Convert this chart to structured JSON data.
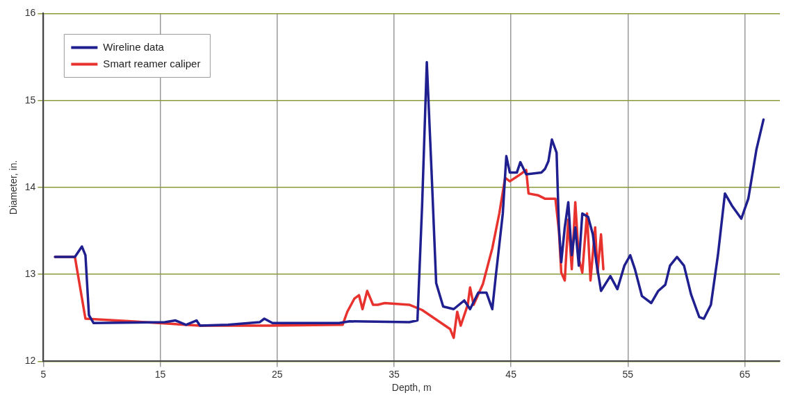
{
  "chart_data": {
    "type": "line",
    "xlabel": "Depth, m",
    "ylabel": "Diameter, in.",
    "xlim": [
      5,
      68
    ],
    "xticks": [
      5,
      15,
      25,
      35,
      45,
      55,
      65
    ],
    "ylim": [
      12,
      16
    ],
    "yticks": [
      12,
      13,
      14,
      15,
      16
    ],
    "grid": true,
    "legend": "top left",
    "marker": "none",
    "line_style": "solid",
    "series": [
      {
        "name": "Wireline data",
        "color": "#1f1f8f",
        "x": [
          6.0,
          7.7,
          8.3,
          8.6,
          8.9,
          9.3,
          15.4,
          16.3,
          17.2,
          18.1,
          18.4,
          20.8,
          23.5,
          23.9,
          24.6,
          30.3,
          31.2,
          36.3,
          37.0,
          37.4,
          37.8,
          38.2,
          38.6,
          39.2,
          40.1,
          41.0,
          41.5,
          42.2,
          42.9,
          43.4,
          43.7,
          44.3,
          44.6,
          44.9,
          45.5,
          45.8,
          46.3,
          47.6,
          47.9,
          48.2,
          48.5,
          48.9,
          49.1,
          49.3,
          49.6,
          49.9,
          50.2,
          50.5,
          50.8,
          51.1,
          51.6,
          52.0,
          52.3,
          52.7,
          53.5,
          54.1,
          54.7,
          55.2,
          55.6,
          56.2,
          57.0,
          57.6,
          58.2,
          58.6,
          59.2,
          59.8,
          60.4,
          61.1,
          61.5,
          62.1,
          62.7,
          63.3,
          63.9,
          64.7,
          65.3,
          66.0,
          66.6
        ],
        "values": [
          13.2,
          13.2,
          13.32,
          13.22,
          12.53,
          12.44,
          12.45,
          12.47,
          12.42,
          12.47,
          12.41,
          12.42,
          12.45,
          12.49,
          12.44,
          12.44,
          12.46,
          12.45,
          12.47,
          13.8,
          15.44,
          14.2,
          12.9,
          12.63,
          12.6,
          12.7,
          12.6,
          12.79,
          12.79,
          12.6,
          12.98,
          13.7,
          14.36,
          14.17,
          14.17,
          14.29,
          14.15,
          14.17,
          14.21,
          14.3,
          14.55,
          14.4,
          13.54,
          13.14,
          13.54,
          13.83,
          13.22,
          13.54,
          13.1,
          13.7,
          13.66,
          13.46,
          13.14,
          12.81,
          12.98,
          12.83,
          13.1,
          13.22,
          13.06,
          12.75,
          12.67,
          12.81,
          12.88,
          13.1,
          13.2,
          13.1,
          12.77,
          12.51,
          12.49,
          12.65,
          13.22,
          13.93,
          13.79,
          13.64,
          13.87,
          14.44,
          14.78
        ]
      },
      {
        "name": "Smart reamer caliper",
        "color": "#e8322e",
        "x": [
          6.0,
          7.7,
          8.6,
          12.5,
          18.4,
          24.3,
          30.6,
          31.0,
          31.6,
          32.0,
          32.3,
          32.7,
          33.2,
          33.6,
          34.2,
          36.3,
          37.4,
          39.8,
          40.1,
          40.4,
          40.7,
          41.3,
          41.5,
          41.8,
          42.6,
          43.4,
          44.0,
          44.5,
          44.9,
          45.8,
          46.3,
          46.5,
          47.3,
          47.9,
          48.8,
          49.1,
          49.3,
          49.6,
          49.9,
          50.2,
          50.5,
          50.8,
          51.1,
          51.5,
          51.8,
          52.2,
          52.4,
          52.7,
          52.9
        ],
        "values": [
          13.2,
          13.2,
          12.49,
          12.46,
          12.41,
          12.41,
          12.42,
          12.57,
          12.72,
          12.76,
          12.6,
          12.81,
          12.65,
          12.65,
          12.67,
          12.65,
          12.59,
          12.37,
          12.27,
          12.57,
          12.41,
          12.65,
          12.85,
          12.65,
          12.89,
          13.3,
          13.7,
          14.11,
          14.07,
          14.15,
          14.2,
          13.93,
          13.91,
          13.87,
          13.87,
          13.5,
          13.02,
          12.93,
          13.63,
          13.06,
          13.83,
          13.18,
          13.02,
          13.7,
          12.93,
          13.54,
          13.02,
          13.46,
          13.06
        ]
      }
    ]
  }
}
